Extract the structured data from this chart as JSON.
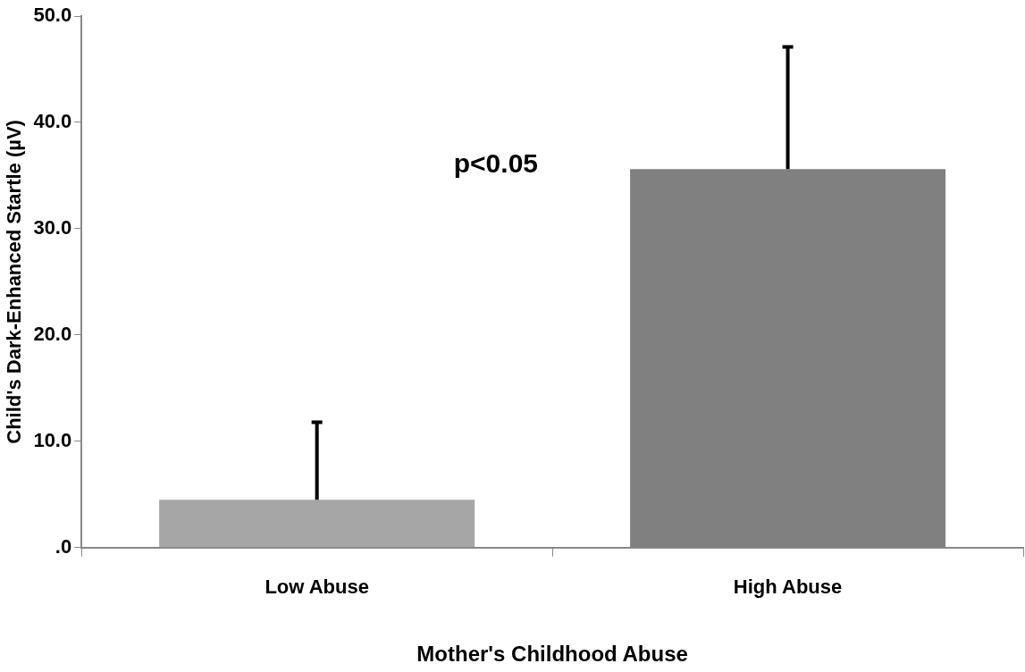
{
  "chart_data": {
    "type": "bar",
    "xlabel": "Mother's Childhood Abuse",
    "ylabel": "Child's Dark-Enhanced Startle (µV)",
    "categories": [
      "Low Abuse",
      "High Abuse"
    ],
    "values": [
      4.5,
      35.6
    ],
    "colors": [
      "#a6a6a6",
      "#808080"
    ],
    "errors": [
      [
        4.5,
        11.8
      ],
      [
        35.6,
        47.1
      ]
    ],
    "ylim": [
      0,
      50
    ],
    "yticks": [
      {
        "value": 0,
        "label": ".0"
      },
      {
        "value": 10,
        "label": "10.0"
      },
      {
        "value": 20,
        "label": "20.0"
      },
      {
        "value": 30,
        "label": "30.0"
      },
      {
        "value": 40,
        "label": "40.0"
      },
      {
        "value": 50,
        "label": "50.0"
      }
    ],
    "annotations": [
      "p<0.05"
    ],
    "grid": false,
    "legend": false
  }
}
